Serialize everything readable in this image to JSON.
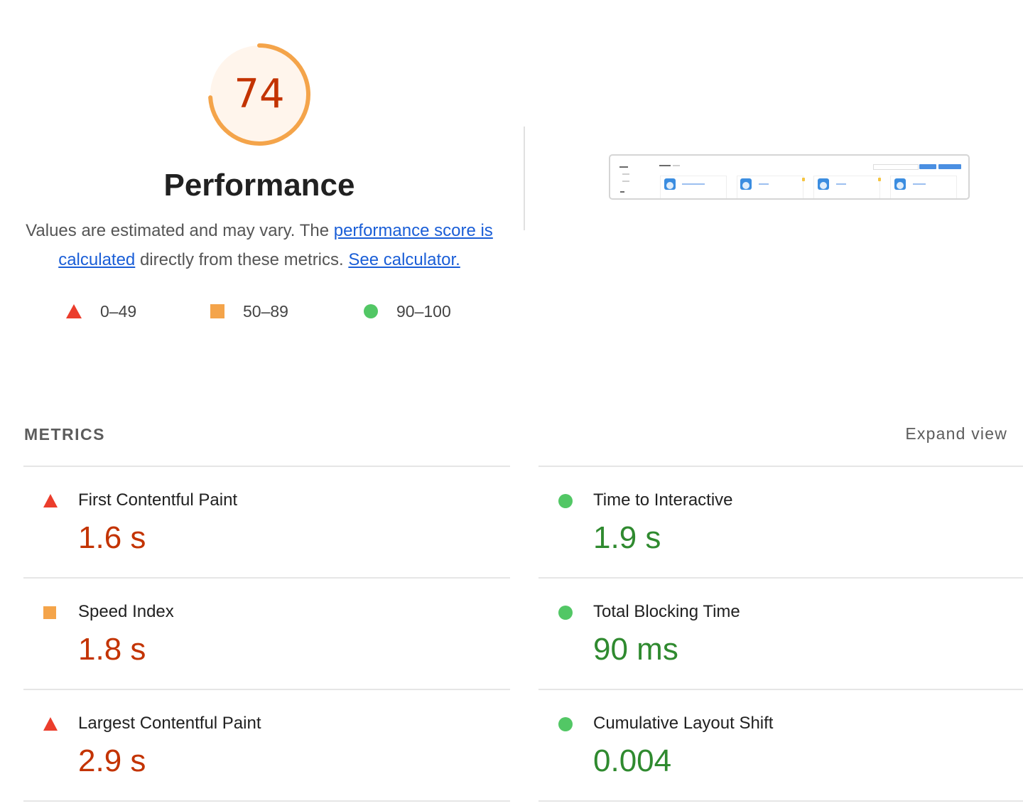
{
  "score": {
    "value": "74",
    "fraction": 0.74,
    "color": "#f4a44a",
    "fill": "#fff5ec",
    "text_color": "#c33300"
  },
  "title": "Performance",
  "description": {
    "text_before": "Values are estimated and may vary. The ",
    "link_score": "performance score is calculated",
    "text_middle": " directly from these metrics. ",
    "link_calculator": "See calculator."
  },
  "legend": [
    {
      "icon": "red-triangle-icon",
      "label": "0–49",
      "color": "#eb3d2c"
    },
    {
      "icon": "orange-square-icon",
      "label": "50–89",
      "color": "#f4a44a"
    },
    {
      "icon": "green-circle-icon",
      "label": "90–100",
      "color": "#52c765"
    }
  ],
  "metrics_header": {
    "title": "METRICS",
    "expand": "Expand view"
  },
  "metrics": {
    "left": [
      {
        "name": "First Contentful Paint",
        "value": "1.6 s",
        "rating": "fail",
        "icon": "red-triangle-icon"
      },
      {
        "name": "Speed Index",
        "value": "1.8 s",
        "rating": "average",
        "icon": "orange-square-icon"
      },
      {
        "name": "Largest Contentful Paint",
        "value": "2.9 s",
        "rating": "fail",
        "icon": "red-triangle-icon"
      }
    ],
    "right": [
      {
        "name": "Time to Interactive",
        "value": "1.9 s",
        "rating": "pass",
        "icon": "green-circle-icon"
      },
      {
        "name": "Total Blocking Time",
        "value": "90 ms",
        "rating": "pass",
        "icon": "green-circle-icon"
      },
      {
        "name": "Cumulative Layout Shift",
        "value": "0.004",
        "rating": "pass",
        "icon": "green-circle-icon"
      }
    ]
  }
}
